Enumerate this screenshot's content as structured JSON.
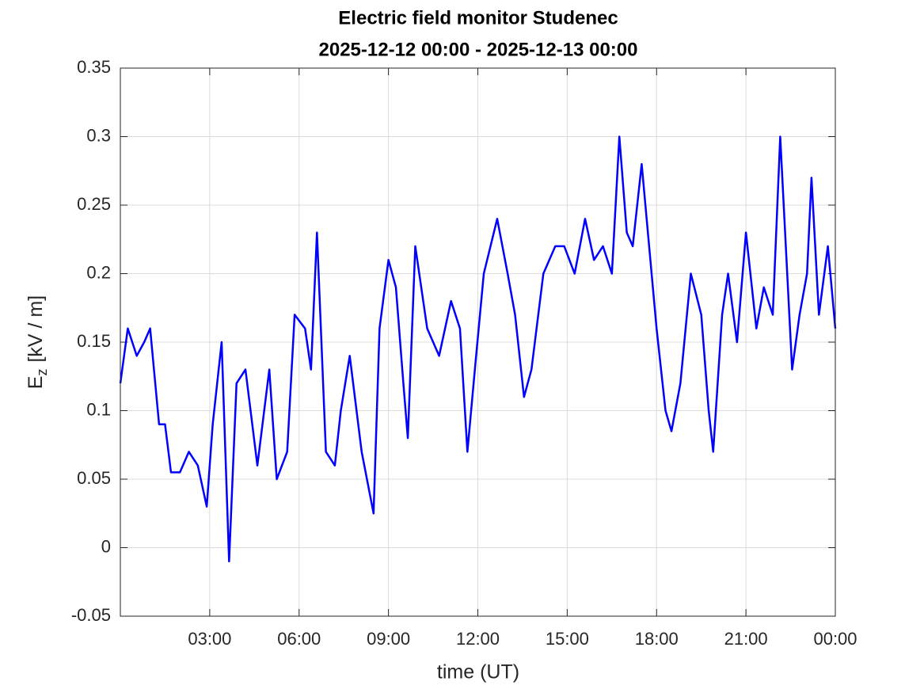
{
  "chart_data": {
    "type": "line",
    "title": "Electric field monitor Studenec",
    "subtitle": "2025-12-12 00:00 - 2025-12-13 00:00",
    "xlabel": "time (UT)",
    "ylabel": {
      "symbol": "E",
      "subscript": "z",
      "unit": "[kV / m]"
    },
    "x": [
      0,
      0.25,
      0.55,
      0.8,
      1.0,
      1.3,
      1.5,
      1.7,
      2.0,
      2.3,
      2.6,
      2.9,
      3.1,
      3.4,
      3.65,
      3.9,
      4.2,
      4.6,
      5.0,
      5.25,
      5.6,
      5.85,
      6.2,
      6.4,
      6.6,
      6.9,
      7.2,
      7.4,
      7.7,
      8.1,
      8.5,
      8.7,
      9.0,
      9.25,
      9.5,
      9.65,
      9.9,
      10.3,
      10.7,
      11.1,
      11.4,
      11.65,
      11.9,
      12.2,
      12.65,
      13.0,
      13.25,
      13.55,
      13.8,
      14.2,
      14.6,
      14.9,
      15.25,
      15.6,
      15.9,
      16.2,
      16.5,
      16.75,
      17.0,
      17.2,
      17.5,
      17.75,
      18.0,
      18.3,
      18.5,
      18.8,
      19.15,
      19.5,
      19.75,
      19.9,
      20.2,
      20.4,
      20.7,
      21.0,
      21.35,
      21.6,
      21.9,
      22.15,
      22.55,
      22.8,
      23.05,
      23.2,
      23.45,
      23.75,
      24.0
    ],
    "series": [
      {
        "name": "Ez",
        "color": "#0000ff",
        "values": [
          0.12,
          0.16,
          0.14,
          0.15,
          0.16,
          0.09,
          0.09,
          0.055,
          0.055,
          0.07,
          0.06,
          0.03,
          0.09,
          0.15,
          -0.01,
          0.12,
          0.13,
          0.06,
          0.13,
          0.05,
          0.07,
          0.17,
          0.16,
          0.13,
          0.23,
          0.07,
          0.06,
          0.1,
          0.14,
          0.07,
          0.025,
          0.16,
          0.21,
          0.19,
          0.12,
          0.08,
          0.22,
          0.16,
          0.14,
          0.18,
          0.16,
          0.07,
          0.13,
          0.2,
          0.24,
          0.2,
          0.17,
          0.11,
          0.13,
          0.2,
          0.22,
          0.22,
          0.2,
          0.24,
          0.21,
          0.22,
          0.2,
          0.3,
          0.23,
          0.22,
          0.28,
          0.22,
          0.16,
          0.1,
          0.085,
          0.12,
          0.2,
          0.17,
          0.1,
          0.07,
          0.17,
          0.2,
          0.15,
          0.23,
          0.16,
          0.19,
          0.17,
          0.3,
          0.13,
          0.17,
          0.2,
          0.27,
          0.17,
          0.22,
          0.16
        ]
      }
    ],
    "xlim": [
      0,
      24
    ],
    "xticks": [
      {
        "value": 3,
        "label": "03:00"
      },
      {
        "value": 6,
        "label": "06:00"
      },
      {
        "value": 9,
        "label": "09:00"
      },
      {
        "value": 12,
        "label": "12:00"
      },
      {
        "value": 15,
        "label": "15:00"
      },
      {
        "value": 18,
        "label": "18:00"
      },
      {
        "value": 21,
        "label": "21:00"
      },
      {
        "value": 24,
        "label": "00:00"
      }
    ],
    "ylim": [
      -0.05,
      0.35
    ],
    "yticks": [
      -0.05,
      0,
      0.05,
      0.1,
      0.15,
      0.2,
      0.25,
      0.3,
      0.35
    ],
    "grid": true
  }
}
